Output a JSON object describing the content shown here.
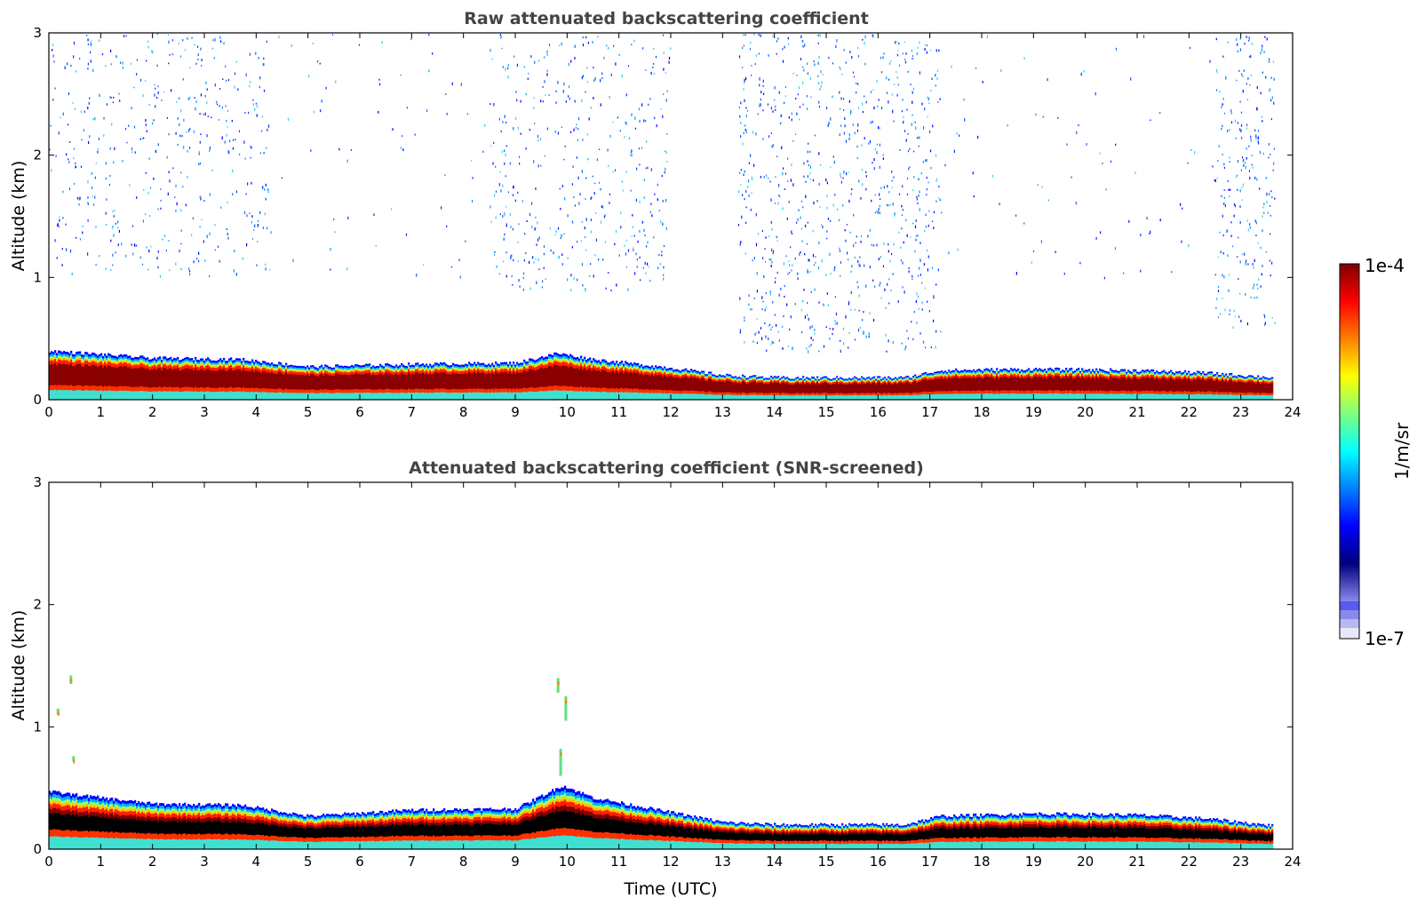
{
  "colors": {
    "jet": [
      "#00007f",
      "#0000ff",
      "#0080ff",
      "#00ffff",
      "#7fff7f",
      "#ffff00",
      "#ff8000",
      "#ff0000",
      "#7f0000"
    ],
    "low_shades": [
      "#e8e8f8",
      "#b8b8f0",
      "#8888ee",
      "#5a5aee"
    ],
    "title_color": "#444444"
  },
  "chart_data": [
    {
      "type": "heatmap",
      "title": "Raw attenuated backscattering coefficient",
      "xlabel": "",
      "ylabel": "Altitude (km)",
      "xlim": [
        0,
        24
      ],
      "ylim": [
        0,
        3
      ],
      "x_ticks": [
        "0",
        "1",
        "2",
        "3",
        "4",
        "5",
        "6",
        "7",
        "8",
        "9",
        "10",
        "11",
        "12",
        "13",
        "14",
        "15",
        "16",
        "17",
        "18",
        "19",
        "20",
        "21",
        "22",
        "23",
        "24"
      ],
      "y_ticks": [
        "0",
        "1",
        "2",
        "3"
      ],
      "data_end_time": 23.65,
      "boundary_layer_top_km": [
        {
          "t": 0,
          "h": 0.4
        },
        {
          "t": 2,
          "h": 0.34
        },
        {
          "t": 3.7,
          "h": 0.33
        },
        {
          "t": 5,
          "h": 0.27
        },
        {
          "t": 7,
          "h": 0.29
        },
        {
          "t": 9,
          "h": 0.3
        },
        {
          "t": 9.8,
          "h": 0.38
        },
        {
          "t": 10.5,
          "h": 0.33
        },
        {
          "t": 12,
          "h": 0.26
        },
        {
          "t": 13,
          "h": 0.2
        },
        {
          "t": 14,
          "h": 0.18
        },
        {
          "t": 16.5,
          "h": 0.18
        },
        {
          "t": 17.2,
          "h": 0.24
        },
        {
          "t": 19,
          "h": 0.25
        },
        {
          "t": 21,
          "h": 0.24
        },
        {
          "t": 22.3,
          "h": 0.22
        },
        {
          "t": 23.65,
          "h": 0.18
        }
      ],
      "noise_regions": [
        {
          "t0": 0.0,
          "t1": 4.3,
          "h0": 1.0,
          "h1": 3.0,
          "density": 0.55
        },
        {
          "t0": 8.5,
          "t1": 12.0,
          "h0": 0.9,
          "h1": 3.0,
          "density": 0.6
        },
        {
          "t0": 13.3,
          "t1": 17.2,
          "h0": 0.4,
          "h1": 3.0,
          "density": 0.8
        },
        {
          "t0": 22.5,
          "t1": 23.65,
          "h0": 0.6,
          "h1": 3.0,
          "density": 0.9
        },
        {
          "t0": 4.3,
          "t1": 8.5,
          "h0": 1.0,
          "h1": 3.0,
          "density": 0.08
        },
        {
          "t0": 17.2,
          "t1": 22.5,
          "h0": 1.0,
          "h1": 3.0,
          "density": 0.08
        }
      ]
    },
    {
      "type": "heatmap",
      "title": "Attenuated backscattering coefficient (SNR-screened)",
      "xlabel": "Time (UTC)",
      "ylabel": "Altitude (km)",
      "xlim": [
        0,
        24
      ],
      "ylim": [
        0,
        3
      ],
      "x_ticks": [
        "0",
        "1",
        "2",
        "3",
        "4",
        "5",
        "6",
        "7",
        "8",
        "9",
        "10",
        "11",
        "12",
        "13",
        "14",
        "15",
        "16",
        "17",
        "18",
        "19",
        "20",
        "21",
        "22",
        "23",
        "24"
      ],
      "y_ticks": [
        "0",
        "1",
        "2",
        "3"
      ],
      "data_end_time": 23.65,
      "boundary_layer_top_km": [
        {
          "t": 0,
          "h": 0.47
        },
        {
          "t": 2,
          "h": 0.37
        },
        {
          "t": 3.7,
          "h": 0.36
        },
        {
          "t": 5,
          "h": 0.27
        },
        {
          "t": 7,
          "h": 0.32
        },
        {
          "t": 9,
          "h": 0.33
        },
        {
          "t": 9.9,
          "h": 0.52
        },
        {
          "t": 10.5,
          "h": 0.42
        },
        {
          "t": 12,
          "h": 0.3
        },
        {
          "t": 13,
          "h": 0.22
        },
        {
          "t": 14,
          "h": 0.2
        },
        {
          "t": 16.5,
          "h": 0.2
        },
        {
          "t": 17.2,
          "h": 0.27
        },
        {
          "t": 19,
          "h": 0.29
        },
        {
          "t": 21,
          "h": 0.28
        },
        {
          "t": 22.3,
          "h": 0.25
        },
        {
          "t": 23.65,
          "h": 0.19
        }
      ],
      "isolated_features": [
        {
          "t": 0.4,
          "h0": 1.35,
          "h1": 1.42
        },
        {
          "t": 0.15,
          "h0": 1.1,
          "h1": 1.15
        },
        {
          "t": 0.45,
          "h0": 0.72,
          "h1": 0.76
        },
        {
          "t": 9.8,
          "h0": 1.28,
          "h1": 1.4
        },
        {
          "t": 9.95,
          "h0": 1.05,
          "h1": 1.25
        },
        {
          "t": 9.85,
          "h0": 0.6,
          "h1": 0.82
        }
      ],
      "colorbar": {
        "label": "1/m/sr",
        "max_label": "1e-4",
        "min_label": "1e-7",
        "range": [
          1e-07,
          0.0001
        ],
        "scale": "log"
      }
    }
  ]
}
